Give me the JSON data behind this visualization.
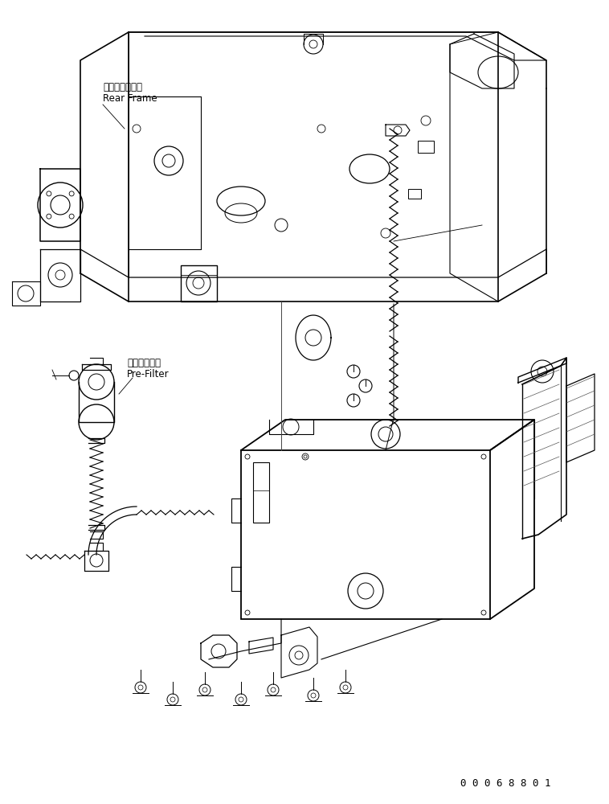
{
  "background_color": "#ffffff",
  "line_color": "#000000",
  "text_color": "#000000",
  "part_number": "0 0 0 6 8 8 0 1",
  "label_rear_frame_jp": "リヤーフレーム",
  "label_rear_frame_en": "Rear Frame",
  "label_pre_filter_jp": "プリフィルタ",
  "label_pre_filter_en": "Pre-Filter",
  "figsize": [
    7.58,
    10.0
  ],
  "dpi": 100
}
